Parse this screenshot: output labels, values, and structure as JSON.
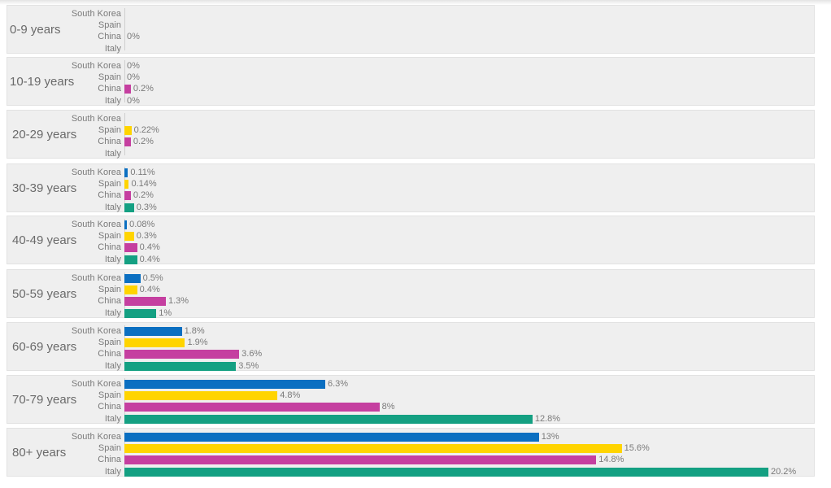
{
  "chart_data": {
    "type": "bar",
    "orientation": "horizontal",
    "countries": [
      "South Korea",
      "Spain",
      "China",
      "Italy"
    ],
    "colors": {
      "South Korea": "#0b6fc1",
      "Spain": "#ffd400",
      "China": "#c53fa0",
      "Italy": "#14a082"
    },
    "groups": [
      {
        "label": "0-9 years",
        "rows": [
          {
            "country": "South Korea",
            "value": null,
            "label": ""
          },
          {
            "country": "Spain",
            "value": null,
            "label": ""
          },
          {
            "country": "China",
            "value": 0,
            "label": "0%"
          },
          {
            "country": "Italy",
            "value": null,
            "label": ""
          }
        ],
        "value_row_offset": 1.5
      },
      {
        "label": "10-19 years",
        "rows": [
          {
            "country": "South Korea",
            "value": 0,
            "label": "0%"
          },
          {
            "country": "Spain",
            "value": 0,
            "label": "0%"
          },
          {
            "country": "China",
            "value": 0.2,
            "label": "0.2%"
          },
          {
            "country": "Italy",
            "value": 0,
            "label": "0%"
          }
        ]
      },
      {
        "label": "20-29 years",
        "rows": [
          {
            "country": "South Korea",
            "value": null,
            "label": ""
          },
          {
            "country": "Spain",
            "value": 0.22,
            "label": "0.22%"
          },
          {
            "country": "China",
            "value": 0.2,
            "label": "0.2%"
          },
          {
            "country": "Italy",
            "value": null,
            "label": ""
          }
        ]
      },
      {
        "label": "30-39 years",
        "rows": [
          {
            "country": "South Korea",
            "value": 0.11,
            "label": "0.11%"
          },
          {
            "country": "Spain",
            "value": 0.14,
            "label": "0.14%"
          },
          {
            "country": "China",
            "value": 0.2,
            "label": "0.2%"
          },
          {
            "country": "Italy",
            "value": 0.3,
            "label": "0.3%"
          }
        ]
      },
      {
        "label": "40-49 years",
        "rows": [
          {
            "country": "South Korea",
            "value": 0.08,
            "label": "0.08%"
          },
          {
            "country": "Spain",
            "value": 0.3,
            "label": "0.3%"
          },
          {
            "country": "China",
            "value": 0.4,
            "label": "0.4%"
          },
          {
            "country": "Italy",
            "value": 0.4,
            "label": "0.4%"
          }
        ]
      },
      {
        "label": "50-59 years",
        "rows": [
          {
            "country": "South Korea",
            "value": 0.5,
            "label": "0.5%"
          },
          {
            "country": "Spain",
            "value": 0.4,
            "label": "0.4%"
          },
          {
            "country": "China",
            "value": 1.3,
            "label": "1.3%"
          },
          {
            "country": "Italy",
            "value": 1,
            "label": "1%"
          }
        ]
      },
      {
        "label": "60-69 years",
        "rows": [
          {
            "country": "South Korea",
            "value": 1.8,
            "label": "1.8%"
          },
          {
            "country": "Spain",
            "value": 1.9,
            "label": "1.9%"
          },
          {
            "country": "China",
            "value": 3.6,
            "label": "3.6%"
          },
          {
            "country": "Italy",
            "value": 3.5,
            "label": "3.5%"
          }
        ]
      },
      {
        "label": "70-79 years",
        "rows": [
          {
            "country": "South Korea",
            "value": 6.3,
            "label": "6.3%"
          },
          {
            "country": "Spain",
            "value": 4.8,
            "label": "4.8%"
          },
          {
            "country": "China",
            "value": 8,
            "label": "8%"
          },
          {
            "country": "Italy",
            "value": 12.8,
            "label": "12.8%"
          }
        ]
      },
      {
        "label": "80+ years",
        "rows": [
          {
            "country": "South Korea",
            "value": 13,
            "label": "13%"
          },
          {
            "country": "Spain",
            "value": 15.6,
            "label": "15.6%"
          },
          {
            "country": "China",
            "value": 14.8,
            "label": "14.8%"
          },
          {
            "country": "Italy",
            "value": 20.2,
            "label": "20.2%"
          }
        ]
      }
    ],
    "xlim": [
      0,
      20.2
    ]
  }
}
